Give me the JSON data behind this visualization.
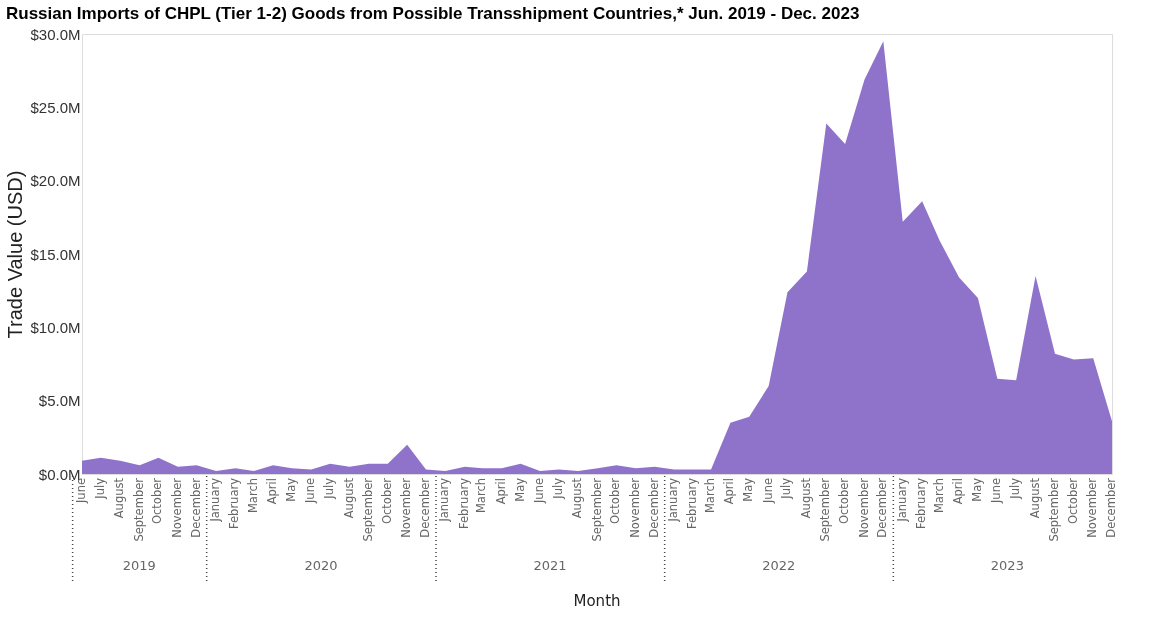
{
  "chart_data": {
    "type": "area",
    "title": "Russian Imports of CHPL (Tier 1-2) Goods from Possible Transshipment Countries,* Jun. 2019 - Dec. 2023",
    "xlabel": "Month",
    "ylabel": "Trade Value (USD)",
    "x": [
      "2019-06",
      "2019-07",
      "2019-08",
      "2019-09",
      "2019-10",
      "2019-11",
      "2019-12",
      "2020-01",
      "2020-02",
      "2020-03",
      "2020-04",
      "2020-05",
      "2020-06",
      "2020-07",
      "2020-08",
      "2020-09",
      "2020-10",
      "2020-11",
      "2020-12",
      "2021-01",
      "2021-02",
      "2021-03",
      "2021-04",
      "2021-05",
      "2021-06",
      "2021-07",
      "2021-08",
      "2021-09",
      "2021-10",
      "2021-11",
      "2021-12",
      "2022-01",
      "2022-02",
      "2022-03",
      "2022-04",
      "2022-05",
      "2022-06",
      "2022-07",
      "2022-08",
      "2022-09",
      "2022-10",
      "2022-11",
      "2022-12",
      "2023-01",
      "2023-02",
      "2023-03",
      "2023-04",
      "2023-05",
      "2023-06",
      "2023-07",
      "2023-08",
      "2023-09",
      "2023-10",
      "2023-11",
      "2023-12"
    ],
    "series": [
      {
        "color": "#8f73cb",
        "values": [
          0.9,
          1.1,
          0.9,
          0.6,
          1.1,
          0.5,
          0.6,
          0.2,
          0.4,
          0.2,
          0.6,
          0.4,
          0.3,
          0.7,
          0.5,
          0.7,
          0.7,
          2.0,
          0.3,
          0.2,
          0.5,
          0.4,
          0.4,
          0.7,
          0.2,
          0.3,
          0.2,
          0.4,
          0.6,
          0.4,
          0.5,
          0.3,
          0.3,
          0.3,
          3.5,
          3.9,
          6.0,
          12.4,
          13.8,
          23.9,
          22.5,
          26.9,
          29.5,
          17.2,
          18.6,
          15.9,
          13.4,
          12.0,
          6.5,
          6.4,
          13.5,
          8.2,
          7.8,
          7.9,
          3.6
        ]
      }
    ],
    "xlim": [
      "2019-06",
      "2023-12"
    ],
    "xticks": [
      {
        "value": "2019-06",
        "label": "June"
      },
      {
        "value": "2019-07",
        "label": "July"
      },
      {
        "value": "2019-08",
        "label": "August"
      },
      {
        "value": "2019-09",
        "label": "September"
      },
      {
        "value": "2019-10",
        "label": "October"
      },
      {
        "value": "2019-11",
        "label": "November"
      },
      {
        "value": "2019-12",
        "label": "December"
      },
      {
        "value": "2020-01",
        "label": "January"
      },
      {
        "value": "2020-02",
        "label": "February"
      },
      {
        "value": "2020-03",
        "label": "March"
      },
      {
        "value": "2020-04",
        "label": "April"
      },
      {
        "value": "2020-05",
        "label": "May"
      },
      {
        "value": "2020-06",
        "label": "June"
      },
      {
        "value": "2020-07",
        "label": "July"
      },
      {
        "value": "2020-08",
        "label": "August"
      },
      {
        "value": "2020-09",
        "label": "September"
      },
      {
        "value": "2020-10",
        "label": "October"
      },
      {
        "value": "2020-11",
        "label": "November"
      },
      {
        "value": "2020-12",
        "label": "December"
      },
      {
        "value": "2021-01",
        "label": "January"
      },
      {
        "value": "2021-02",
        "label": "February"
      },
      {
        "value": "2021-03",
        "label": "March"
      },
      {
        "value": "2021-04",
        "label": "April"
      },
      {
        "value": "2021-05",
        "label": "May"
      },
      {
        "value": "2021-06",
        "label": "June"
      },
      {
        "value": "2021-07",
        "label": "July"
      },
      {
        "value": "2021-08",
        "label": "August"
      },
      {
        "value": "2021-09",
        "label": "September"
      },
      {
        "value": "2021-10",
        "label": "October"
      },
      {
        "value": "2021-11",
        "label": "November"
      },
      {
        "value": "2021-12",
        "label": "December"
      },
      {
        "value": "2022-01",
        "label": "January"
      },
      {
        "value": "2022-02",
        "label": "February"
      },
      {
        "value": "2022-03",
        "label": "March"
      },
      {
        "value": "2022-04",
        "label": "April"
      },
      {
        "value": "2022-05",
        "label": "May"
      },
      {
        "value": "2022-06",
        "label": "June"
      },
      {
        "value": "2022-07",
        "label": "July"
      },
      {
        "value": "2022-08",
        "label": "August"
      },
      {
        "value": "2022-09",
        "label": "September"
      },
      {
        "value": "2022-10",
        "label": "October"
      },
      {
        "value": "2022-11",
        "label": "November"
      },
      {
        "value": "2022-12",
        "label": "December"
      },
      {
        "value": "2023-01",
        "label": "January"
      },
      {
        "value": "2023-02",
        "label": "February"
      },
      {
        "value": "2023-03",
        "label": "March"
      },
      {
        "value": "2023-04",
        "label": "April"
      },
      {
        "value": "2023-05",
        "label": "May"
      },
      {
        "value": "2023-06",
        "label": "June"
      },
      {
        "value": "2023-07",
        "label": "July"
      },
      {
        "value": "2023-08",
        "label": "August"
      },
      {
        "value": "2023-09",
        "label": "September"
      },
      {
        "value": "2023-10",
        "label": "October"
      },
      {
        "value": "2023-11",
        "label": "November"
      },
      {
        "value": "2023-12",
        "label": "December"
      }
    ],
    "annotations": [
      "2019",
      "2020",
      "2021",
      "2022",
      "2023"
    ],
    "ylim": [
      0,
      30
    ],
    "yticks": [
      {
        "value": 0,
        "label": "$0.0M"
      },
      {
        "value": 5,
        "label": "$5.0M"
      },
      {
        "value": 10,
        "label": "$10.0M"
      },
      {
        "value": 15,
        "label": "$15.0M"
      },
      {
        "value": 20,
        "label": "$20.0M"
      },
      {
        "value": 25,
        "label": "$25.0M"
      },
      {
        "value": 30,
        "label": "$30.0M"
      }
    ],
    "grid": false
  }
}
